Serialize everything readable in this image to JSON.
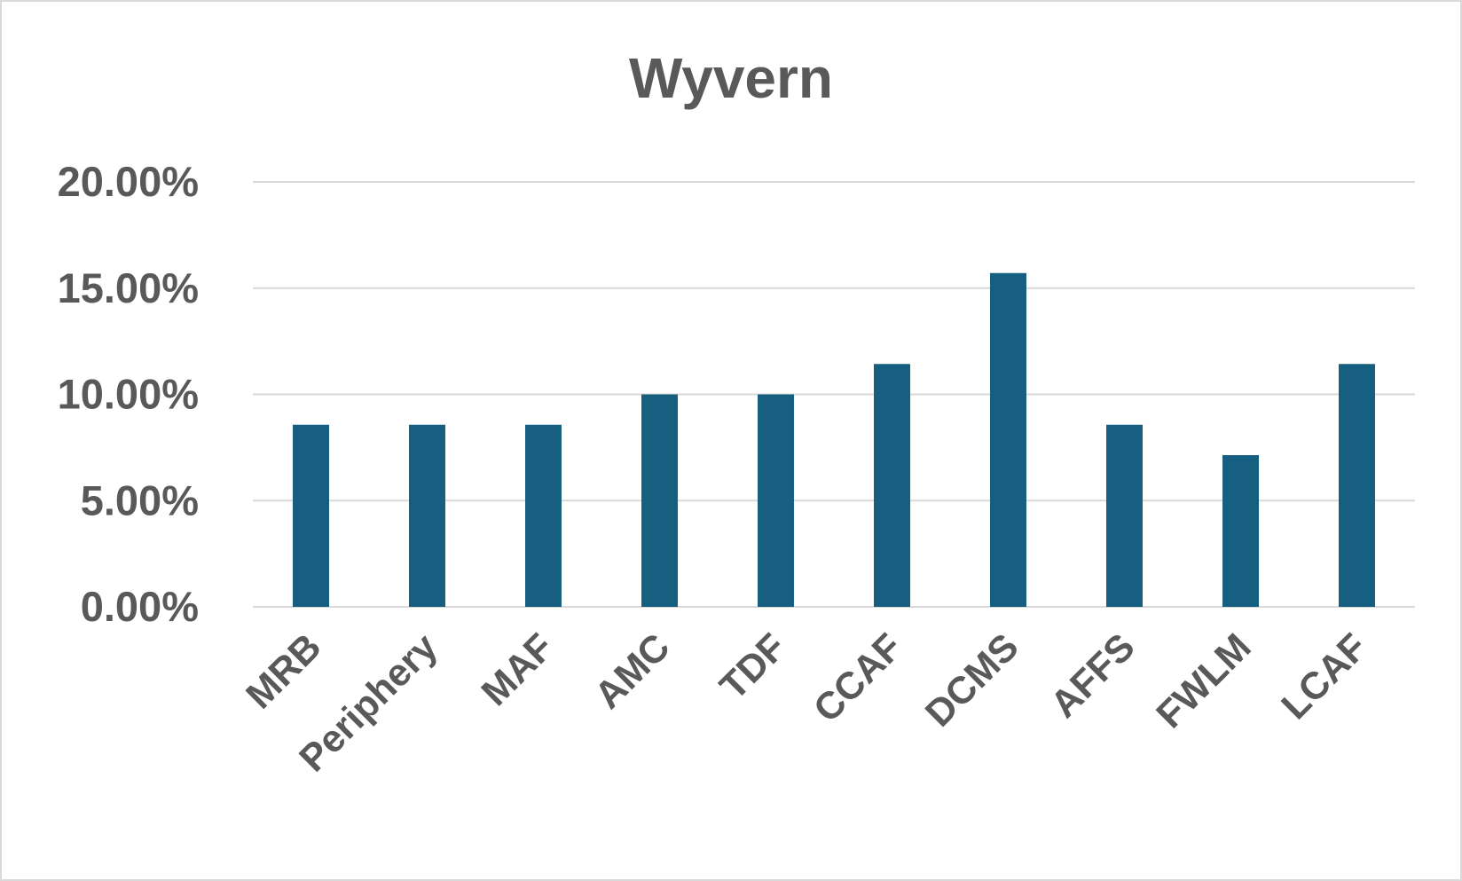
{
  "chart_data": {
    "type": "bar",
    "title": "Wyvern",
    "categories": [
      "MRB",
      "Periphery",
      "MAF",
      "AMC",
      "TDF",
      "CCAF",
      "DCMS",
      "AFFS",
      "FWLM",
      "LCAF"
    ],
    "values": [
      8.57,
      8.57,
      8.57,
      10,
      10,
      11.43,
      15.71,
      8.57,
      7.14,
      11.43
    ],
    "color": "#175f80",
    "ylim": [
      0,
      20
    ],
    "yticks": [
      {
        "value": 0,
        "label": "0.00%"
      },
      {
        "value": 5,
        "label": "5.00%"
      },
      {
        "value": 10,
        "label": "10.00%"
      },
      {
        "value": 15,
        "label": "15.00%"
      },
      {
        "value": 20,
        "label": "20.00%"
      }
    ],
    "grid": true
  }
}
